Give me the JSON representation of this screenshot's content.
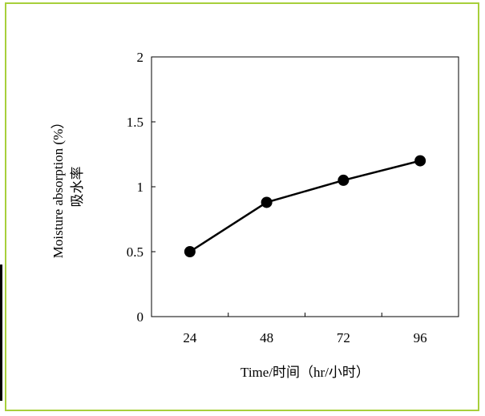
{
  "chart_data": {
    "type": "line",
    "categories": [
      "24",
      "48",
      "72",
      "96"
    ],
    "series": [
      {
        "values": [
          0.5,
          0.88,
          1.05,
          1.2
        ]
      }
    ],
    "xlabel": "Time/时间（hr/小时）",
    "ylabel": "Moisture absorption (%）",
    "ylabel_zh": "吸水率",
    "ylim": [
      0,
      2
    ],
    "yticks": [
      "0",
      "0.5",
      "1",
      "1.5",
      "2"
    ],
    "grid": false,
    "legend": "none",
    "colors": {
      "frame_border": "#a7cf3b",
      "series_line": "#000000",
      "marker": "#000000"
    },
    "marker": "filled-circle"
  }
}
